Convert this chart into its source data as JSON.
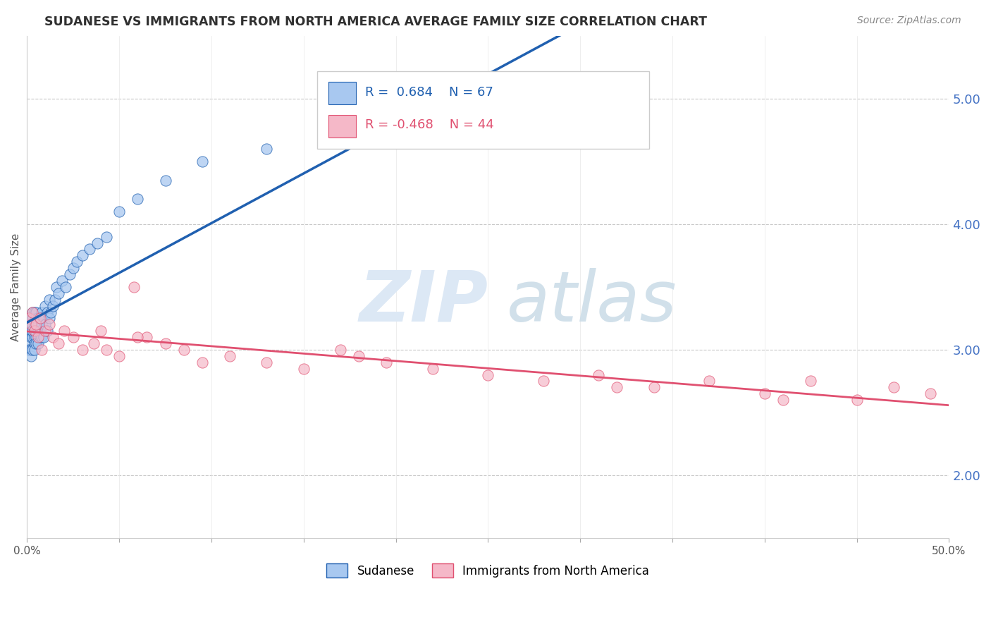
{
  "title": "SUDANESE VS IMMIGRANTS FROM NORTH AMERICA AVERAGE FAMILY SIZE CORRELATION CHART",
  "source": "Source: ZipAtlas.com",
  "ylabel": "Average Family Size",
  "xlim": [
    0.0,
    0.5
  ],
  "ylim": [
    1.5,
    5.5
  ],
  "yticks": [
    2.0,
    3.0,
    4.0,
    5.0
  ],
  "xticks": [
    0.0,
    0.05,
    0.1,
    0.15,
    0.2,
    0.25,
    0.3,
    0.35,
    0.4,
    0.45,
    0.5
  ],
  "xtick_labels": [
    "0.0%",
    "",
    "",
    "",
    "",
    "",
    "",
    "",
    "",
    "",
    "50.0%"
  ],
  "blue_R": 0.684,
  "blue_N": 67,
  "pink_R": -0.468,
  "pink_N": 44,
  "blue_color": "#a8c8f0",
  "pink_color": "#f5b8c8",
  "blue_line_color": "#2060b0",
  "pink_line_color": "#e05070",
  "legend_label_blue": "Sudanese",
  "legend_label_pink": "Immigrants from North America",
  "watermark_zip": "ZIP",
  "watermark_atlas": "atlas",
  "background_color": "#ffffff",
  "grid_color": "#c8c8c8",
  "title_color": "#303030",
  "axis_label_color": "#4472c4",
  "blue_scatter_x": [
    0.001,
    0.001,
    0.001,
    0.001,
    0.002,
    0.002,
    0.002,
    0.002,
    0.002,
    0.003,
    0.003,
    0.003,
    0.003,
    0.003,
    0.003,
    0.004,
    0.004,
    0.004,
    0.004,
    0.004,
    0.004,
    0.005,
    0.005,
    0.005,
    0.005,
    0.005,
    0.005,
    0.006,
    0.006,
    0.006,
    0.006,
    0.007,
    0.007,
    0.007,
    0.008,
    0.008,
    0.008,
    0.009,
    0.009,
    0.01,
    0.01,
    0.011,
    0.011,
    0.012,
    0.012,
    0.013,
    0.014,
    0.015,
    0.016,
    0.017,
    0.019,
    0.021,
    0.023,
    0.025,
    0.027,
    0.03,
    0.034,
    0.038,
    0.043,
    0.05,
    0.06,
    0.075,
    0.095,
    0.13,
    0.17,
    0.23,
    0.295
  ],
  "blue_scatter_y": [
    3.05,
    3.15,
    3.25,
    3.0,
    3.1,
    3.2,
    3.0,
    3.15,
    2.95,
    3.1,
    3.2,
    3.3,
    3.0,
    3.15,
    3.25,
    3.1,
    3.2,
    3.05,
    3.3,
    3.15,
    3.0,
    3.2,
    3.1,
    3.25,
    3.05,
    3.15,
    3.3,
    3.15,
    3.25,
    3.05,
    3.2,
    3.1,
    3.25,
    3.15,
    3.2,
    3.3,
    3.1,
    3.25,
    3.1,
    3.2,
    3.35,
    3.3,
    3.15,
    3.4,
    3.25,
    3.3,
    3.35,
    3.4,
    3.5,
    3.45,
    3.55,
    3.5,
    3.6,
    3.65,
    3.7,
    3.75,
    3.8,
    3.85,
    3.9,
    4.1,
    4.2,
    4.35,
    4.5,
    4.6,
    4.7,
    4.75,
    4.85
  ],
  "pink_scatter_x": [
    0.001,
    0.002,
    0.003,
    0.004,
    0.005,
    0.006,
    0.007,
    0.008,
    0.01,
    0.012,
    0.014,
    0.017,
    0.02,
    0.025,
    0.03,
    0.036,
    0.043,
    0.05,
    0.058,
    0.065,
    0.075,
    0.085,
    0.095,
    0.11,
    0.13,
    0.15,
    0.17,
    0.195,
    0.22,
    0.25,
    0.28,
    0.31,
    0.34,
    0.37,
    0.4,
    0.425,
    0.45,
    0.47,
    0.49,
    0.06,
    0.04,
    0.18,
    0.32,
    0.41
  ],
  "pink_scatter_y": [
    3.25,
    3.2,
    3.3,
    3.15,
    3.2,
    3.1,
    3.25,
    3.0,
    3.15,
    3.2,
    3.1,
    3.05,
    3.15,
    3.1,
    3.0,
    3.05,
    3.0,
    2.95,
    3.5,
    3.1,
    3.05,
    3.0,
    2.9,
    2.95,
    2.9,
    2.85,
    3.0,
    2.9,
    2.85,
    2.8,
    2.75,
    2.8,
    2.7,
    2.75,
    2.65,
    2.75,
    2.6,
    2.7,
    2.65,
    3.1,
    3.15,
    2.95,
    2.7,
    2.6
  ]
}
